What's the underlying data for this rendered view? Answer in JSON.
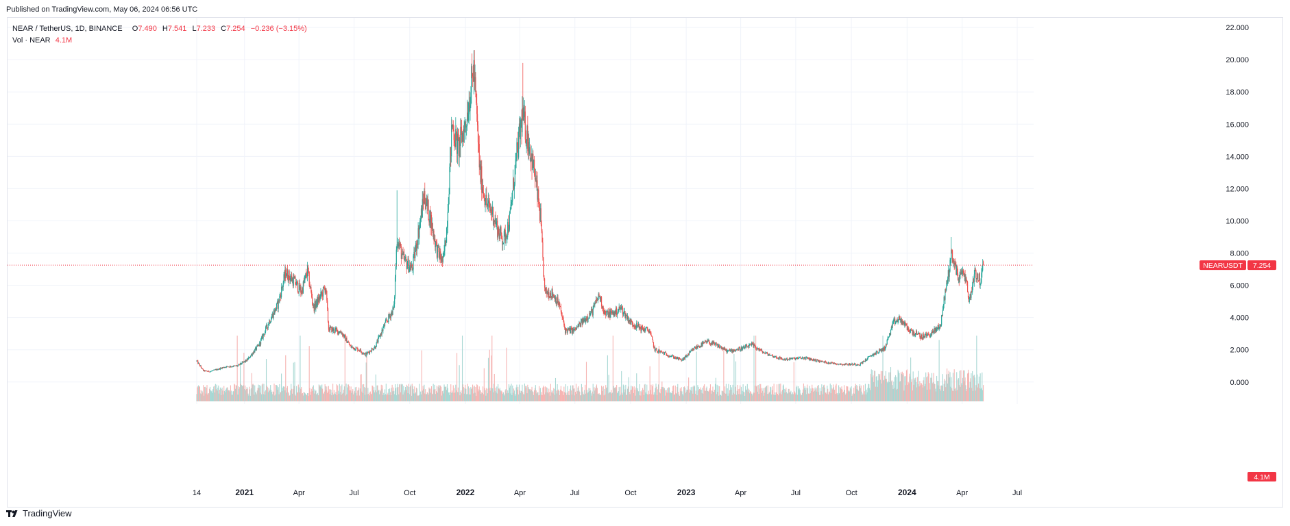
{
  "header": {
    "published": "Published on TradingView.com, May 06, 2024 06:56 UTC"
  },
  "legend": {
    "symbol": "NEAR / TetherUS, 1D, BINANCE",
    "o_label": "O",
    "o_value": "7.490",
    "h_label": "H",
    "h_value": "7.541",
    "l_label": "L",
    "l_value": "7.233",
    "c_label": "C",
    "c_value": "7.254",
    "change": "−0.236 (−3.15%)",
    "vol_label": "Vol · NEAR",
    "vol_value": "4.1M"
  },
  "badges": {
    "symbol": "NEARUSDT",
    "price": "7.254",
    "volume": "4.1M"
  },
  "footer": {
    "brand": "TradingView"
  },
  "colors": {
    "up": "#26a69a",
    "down": "#ef5350",
    "volume_up": "#a7d7d3",
    "volume_down": "#f6b4b2",
    "grid": "#f0f3fa",
    "price_line": "#f23645",
    "axis_text": "#131722",
    "badge_red": "#f23645"
  },
  "chart_data": {
    "type": "candlestick",
    "title": "NEAR / TetherUS, 1D, BINANCE",
    "date_range": [
      "2020-10-14",
      "2024-05-06"
    ],
    "y_axis": {
      "position": "right",
      "range": [
        -1.2,
        22.6
      ],
      "ticks": [
        "22.000",
        "20.000",
        "18.000",
        "16.000",
        "14.000",
        "12.000",
        "10.000",
        "8.000",
        "6.000",
        "4.000",
        "2.000",
        "0.000"
      ],
      "tick_values": [
        22,
        20,
        18,
        16,
        14,
        12,
        10,
        8,
        6,
        4,
        2,
        0
      ]
    },
    "x_axis": {
      "labels": [
        "14",
        "2021",
        "Apr",
        "Jul",
        "Oct",
        "2022",
        "Apr",
        "Jul",
        "Oct",
        "2023",
        "Apr",
        "Jul",
        "Oct",
        "2024",
        "Apr",
        "Jul"
      ],
      "bold_labels": [
        "2021",
        "2022",
        "2023",
        "2024"
      ]
    },
    "last_price": 7.254,
    "close_path": [
      {
        "date": "2020-10-14",
        "close": 1.3
      },
      {
        "date": "2020-10-25",
        "close": 0.7
      },
      {
        "date": "2020-11-05",
        "close": 0.65
      },
      {
        "date": "2020-12-01",
        "close": 0.95
      },
      {
        "date": "2020-12-20",
        "close": 1.0
      },
      {
        "date": "2021-01-05",
        "close": 1.35
      },
      {
        "date": "2021-01-25",
        "close": 2.3
      },
      {
        "date": "2021-02-10",
        "close": 3.7
      },
      {
        "date": "2021-02-25",
        "close": 4.8
      },
      {
        "date": "2021-03-10",
        "close": 6.8
      },
      {
        "date": "2021-03-25",
        "close": 6.2
      },
      {
        "date": "2021-04-05",
        "close": 5.6
      },
      {
        "date": "2021-04-15",
        "close": 6.9
      },
      {
        "date": "2021-04-25",
        "close": 4.6
      },
      {
        "date": "2021-05-05",
        "close": 5.2
      },
      {
        "date": "2021-05-15",
        "close": 5.9
      },
      {
        "date": "2021-05-20",
        "close": 3.3
      },
      {
        "date": "2021-06-10",
        "close": 3.1
      },
      {
        "date": "2021-06-25",
        "close": 2.2
      },
      {
        "date": "2021-07-10",
        "close": 2.0
      },
      {
        "date": "2021-07-20",
        "close": 1.7
      },
      {
        "date": "2021-08-05",
        "close": 2.2
      },
      {
        "date": "2021-08-20",
        "close": 3.5
      },
      {
        "date": "2021-09-05",
        "close": 4.6
      },
      {
        "date": "2021-09-10",
        "close": 9.0
      },
      {
        "date": "2021-09-20",
        "close": 7.6
      },
      {
        "date": "2021-10-05",
        "close": 7.0
      },
      {
        "date": "2021-10-15",
        "close": 9.2
      },
      {
        "date": "2021-10-25",
        "close": 11.6
      },
      {
        "date": "2021-11-05",
        "close": 10.0
      },
      {
        "date": "2021-11-15",
        "close": 8.2
      },
      {
        "date": "2021-11-25",
        "close": 7.4
      },
      {
        "date": "2021-12-01",
        "close": 9.5
      },
      {
        "date": "2021-12-10",
        "close": 16.0
      },
      {
        "date": "2021-12-20",
        "close": 14.5
      },
      {
        "date": "2022-01-01",
        "close": 16.0
      },
      {
        "date": "2022-01-15",
        "close": 19.5
      },
      {
        "date": "2022-01-25",
        "close": 13.0
      },
      {
        "date": "2022-02-05",
        "close": 11.0
      },
      {
        "date": "2022-02-15",
        "close": 10.5
      },
      {
        "date": "2022-02-25",
        "close": 9.3
      },
      {
        "date": "2022-03-05",
        "close": 8.8
      },
      {
        "date": "2022-03-15",
        "close": 10.0
      },
      {
        "date": "2022-03-25",
        "close": 13.5
      },
      {
        "date": "2022-04-05",
        "close": 16.5
      },
      {
        "date": "2022-04-15",
        "close": 15.0
      },
      {
        "date": "2022-04-25",
        "close": 13.0
      },
      {
        "date": "2022-05-05",
        "close": 10.2
      },
      {
        "date": "2022-05-12",
        "close": 5.6
      },
      {
        "date": "2022-05-25",
        "close": 5.5
      },
      {
        "date": "2022-06-05",
        "close": 4.8
      },
      {
        "date": "2022-06-15",
        "close": 3.2
      },
      {
        "date": "2022-06-30",
        "close": 3.2
      },
      {
        "date": "2022-07-15",
        "close": 3.8
      },
      {
        "date": "2022-07-30",
        "close": 4.4
      },
      {
        "date": "2022-08-10",
        "close": 5.4
      },
      {
        "date": "2022-08-20",
        "close": 4.2
      },
      {
        "date": "2022-09-05",
        "close": 4.3
      },
      {
        "date": "2022-09-15",
        "close": 4.6
      },
      {
        "date": "2022-10-01",
        "close": 3.7
      },
      {
        "date": "2022-10-20",
        "close": 3.3
      },
      {
        "date": "2022-11-01",
        "close": 3.2
      },
      {
        "date": "2022-11-10",
        "close": 2.0
      },
      {
        "date": "2022-12-01",
        "close": 1.7
      },
      {
        "date": "2022-12-25",
        "close": 1.35
      },
      {
        "date": "2023-01-15",
        "close": 2.1
      },
      {
        "date": "2023-02-05",
        "close": 2.5
      },
      {
        "date": "2023-02-25",
        "close": 2.2
      },
      {
        "date": "2023-03-10",
        "close": 1.9
      },
      {
        "date": "2023-04-05",
        "close": 2.1
      },
      {
        "date": "2023-04-20",
        "close": 2.3
      },
      {
        "date": "2023-05-10",
        "close": 1.8
      },
      {
        "date": "2023-06-10",
        "close": 1.4
      },
      {
        "date": "2023-07-15",
        "close": 1.5
      },
      {
        "date": "2023-08-15",
        "close": 1.25
      },
      {
        "date": "2023-09-15",
        "close": 1.1
      },
      {
        "date": "2023-10-15",
        "close": 1.1
      },
      {
        "date": "2023-11-05",
        "close": 1.7
      },
      {
        "date": "2023-11-25",
        "close": 2.1
      },
      {
        "date": "2023-12-10",
        "close": 3.7
      },
      {
        "date": "2023-12-20",
        "close": 3.9
      },
      {
        "date": "2024-01-05",
        "close": 3.2
      },
      {
        "date": "2024-01-25",
        "close": 2.8
      },
      {
        "date": "2024-02-10",
        "close": 3.0
      },
      {
        "date": "2024-02-25",
        "close": 3.5
      },
      {
        "date": "2024-03-05",
        "close": 5.8
      },
      {
        "date": "2024-03-15",
        "close": 8.0
      },
      {
        "date": "2024-03-25",
        "close": 6.5
      },
      {
        "date": "2024-04-05",
        "close": 6.8
      },
      {
        "date": "2024-04-13",
        "close": 5.0
      },
      {
        "date": "2024-04-22",
        "close": 6.9
      },
      {
        "date": "2024-05-01",
        "close": 6.2
      },
      {
        "date": "2024-05-06",
        "close": 7.254
      }
    ],
    "peaks": [
      {
        "date": "2022-01-16",
        "high": 20.6
      },
      {
        "date": "2022-04-06",
        "high": 19.8
      },
      {
        "date": "2024-03-14",
        "high": 9.0
      },
      {
        "date": "2021-09-10",
        "high": 11.9
      }
    ]
  }
}
